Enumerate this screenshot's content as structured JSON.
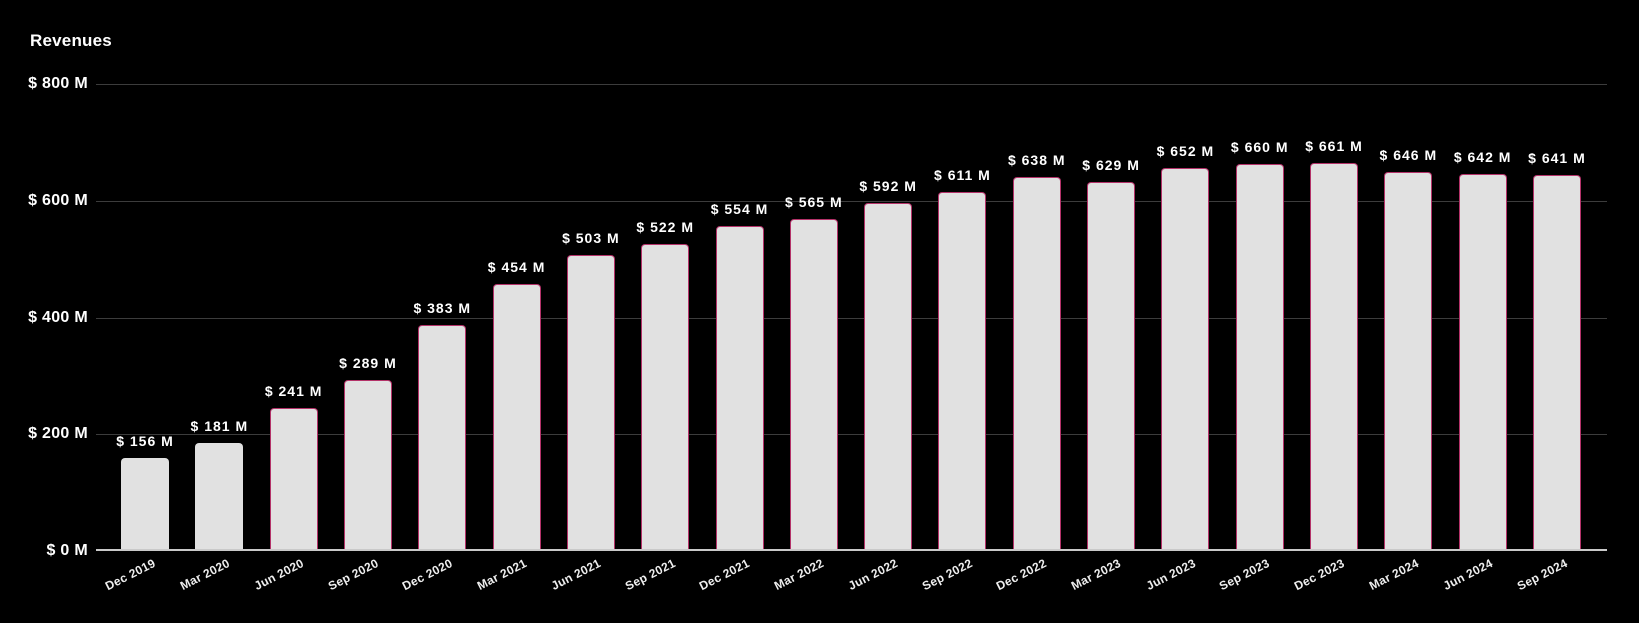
{
  "header": {
    "title": "Revenues"
  },
  "chart_data": {
    "type": "bar",
    "title": "Revenues",
    "categories": [
      "Dec 2019",
      "Mar 2020",
      "Jun 2020",
      "Sep 2020",
      "Dec 2020",
      "Mar 2021",
      "Jun 2021",
      "Sep 2021",
      "Dec 2021",
      "Mar 2022",
      "Jun 2022",
      "Sep 2022",
      "Dec 2022",
      "Mar 2023",
      "Jun 2023",
      "Sep 2023",
      "Dec 2023",
      "Mar 2024",
      "Jun 2024",
      "Sep 2024"
    ],
    "values": [
      156,
      181,
      241,
      289,
      383,
      454,
      503,
      522,
      554,
      565,
      592,
      611,
      638,
      629,
      652,
      660,
      661,
      646,
      642,
      641
    ],
    "value_labels": [
      "$ 156 M",
      "$ 181 M",
      "$ 241 M",
      "$ 289 M",
      "$ 383 M",
      "$ 454 M",
      "$ 503 M",
      "$ 522 M",
      "$ 554 M",
      "$ 565 M",
      "$ 592 M",
      "$ 611 M",
      "$ 638 M",
      "$ 629 M",
      "$ 652 M",
      "$ 660 M",
      "$ 661 M",
      "$ 646 M",
      "$ 642 M",
      "$ 641 M"
    ],
    "border_flags": [
      false,
      false,
      true,
      true,
      true,
      true,
      true,
      true,
      true,
      true,
      true,
      true,
      true,
      true,
      true,
      true,
      true,
      true,
      true,
      true
    ],
    "y_axis": {
      "ticks": [
        {
          "value": 800,
          "label": "$ 800 M"
        },
        {
          "value": 600,
          "label": "$ 600 M"
        },
        {
          "value": 400,
          "label": "$ 400 M"
        },
        {
          "value": 200,
          "label": "$ 200 M"
        },
        {
          "value": 0,
          "label": "$ 0 M"
        }
      ]
    },
    "xlabel": "",
    "ylabel": "",
    "ylim": [
      0,
      800
    ],
    "grid": "horizontal",
    "legend": "none",
    "x_label_rotation_deg": -27,
    "colors": {
      "background": "#000000",
      "bar_fill": "#e1e1e1",
      "bar_border": "#b43269",
      "grid_color": "#3c3c3c",
      "axis_color": "#c9c9c9",
      "text_color": "#ffffff"
    }
  }
}
